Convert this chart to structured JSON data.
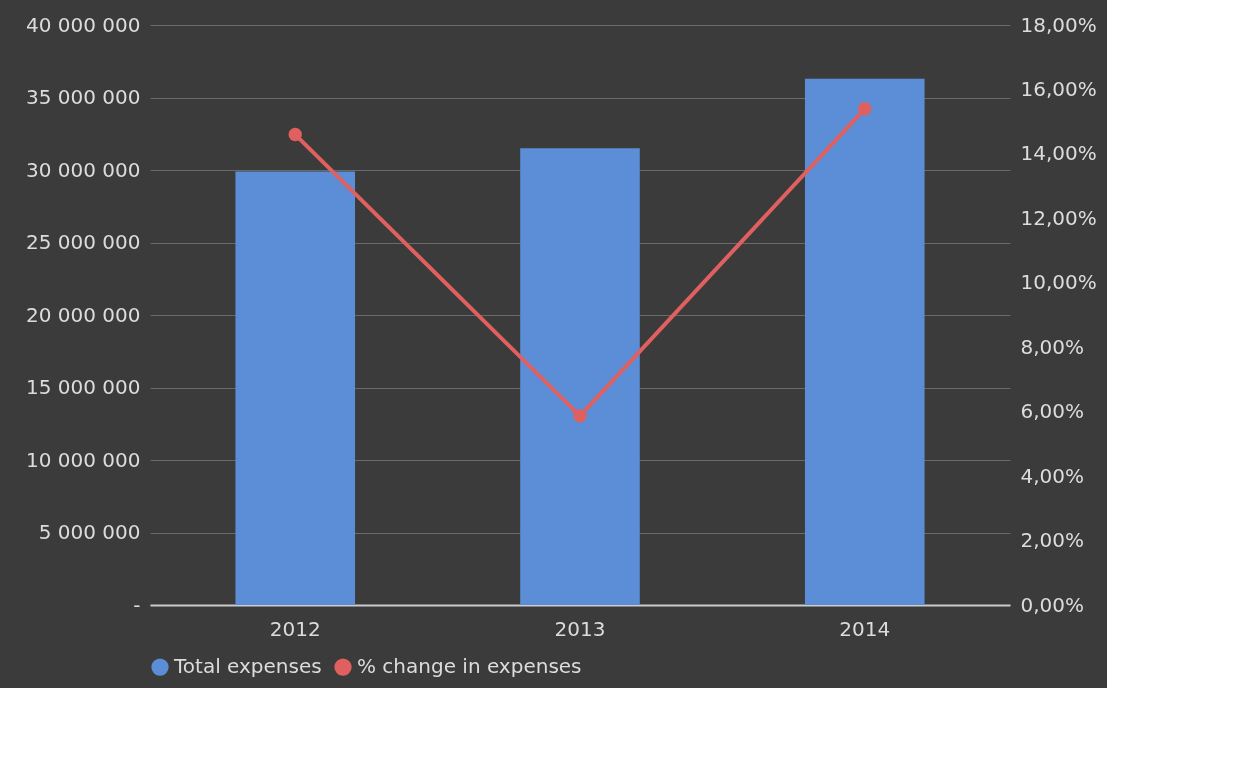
{
  "chart_data": {
    "type": "bar",
    "categories": [
      "2012",
      "2013",
      "2014"
    ],
    "series": [
      {
        "name": "Total expenses",
        "color": "#5b8ed6",
        "values": [
          29900000,
          31500000,
          36300000
        ]
      },
      {
        "name": "% change in expenses",
        "type": "line",
        "axis": "y2",
        "color": "#e06060",
        "values": [
          14.6,
          5.87,
          15.4
        ]
      }
    ],
    "ylim": [
      0,
      40000000
    ],
    "yticks": [
      {
        "value": 0,
        "label": "-"
      },
      {
        "value": 5000000,
        "label": "5 000 000"
      },
      {
        "value": 10000000,
        "label": "10 000 000"
      },
      {
        "value": 15000000,
        "label": "15 000 000"
      },
      {
        "value": 20000000,
        "label": "20 000 000"
      },
      {
        "value": 25000000,
        "label": "25 000 000"
      },
      {
        "value": 30000000,
        "label": "30 000 000"
      },
      {
        "value": 35000000,
        "label": "35 000 000"
      },
      {
        "value": 40000000,
        "label": "40 000 000"
      }
    ],
    "y2lim": [
      0,
      18
    ],
    "y2ticks": [
      {
        "value": 0,
        "label": "0,00%"
      },
      {
        "value": 2,
        "label": "2,00%"
      },
      {
        "value": 4,
        "label": "4,00%"
      },
      {
        "value": 6,
        "label": "6,00%"
      },
      {
        "value": 8,
        "label": "8,00%"
      },
      {
        "value": 10,
        "label": "10,00%"
      },
      {
        "value": 12,
        "label": "12,00%"
      },
      {
        "value": 14,
        "label": "14,00%"
      },
      {
        "value": 16,
        "label": "16,00%"
      },
      {
        "value": 18,
        "label": "18,00%"
      }
    ],
    "grid": "y",
    "legend": "bottom",
    "marker": "circle"
  }
}
